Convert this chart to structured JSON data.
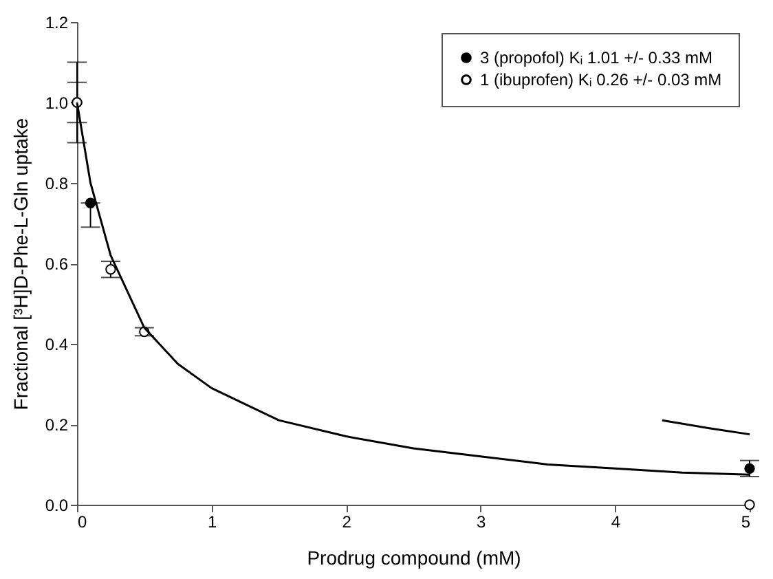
{
  "chart_data": {
    "type": "scatter",
    "xlabel": "Prodrug compound (mM)",
    "ylabel": "Fractional [³H]D-Phe-L-Gln uptake",
    "xlim": [
      0,
      5
    ],
    "ylim": [
      0,
      1.2
    ],
    "xticks": [
      0,
      1,
      2,
      3,
      4,
      5
    ],
    "yticks": [
      {
        "value": 0,
        "label": "0.0"
      },
      0.2,
      0.4,
      0.6,
      0.8,
      {
        "value": 1,
        "label": "1.0"
      },
      1.2
    ],
    "grid": false,
    "legend": "top right",
    "marker": "circle",
    "series": [
      {
        "name": "3 (propofol) Kᵢ 1.01 +/- 0.33 mM",
        "color": "#000000",
        "x": [
          0,
          0.1,
          5
        ],
        "values": [
          1.0,
          0.75,
          0.09
        ],
        "errors": [
          0.1,
          [
            0.69,
            0.75
          ],
          0.02
        ]
      },
      {
        "name": "1 (ibuprofen) Kᵢ 0.26 +/- 0.03 mM",
        "color": "#ffffff",
        "x": [
          0,
          0.25,
          0.5,
          5
        ],
        "values": [
          1.0,
          0.585,
          0.43,
          0.0
        ],
        "errors": [
          0.05,
          0.02,
          0.01,
          null
        ]
      },
      {
        "type": "line",
        "marker": "none",
        "line_style": "solid",
        "color": "#000000",
        "x": [
          0,
          0.1,
          0.25,
          0.5,
          0.75,
          1,
          1.5,
          2,
          2.5,
          3,
          3.5,
          4,
          4.5,
          5
        ],
        "values": [
          1.0,
          0.8,
          0.62,
          0.44,
          0.35,
          0.29,
          0.21,
          0.17,
          0.14,
          0.12,
          0.1,
          0.09,
          0.08,
          0.075
        ]
      },
      {
        "type": "line",
        "marker": "none",
        "line_style": "solid",
        "color": "#000000",
        "x": [
          4.35,
          4.7,
          5
        ],
        "values": [
          0.21,
          0.19,
          0.175
        ]
      }
    ]
  }
}
